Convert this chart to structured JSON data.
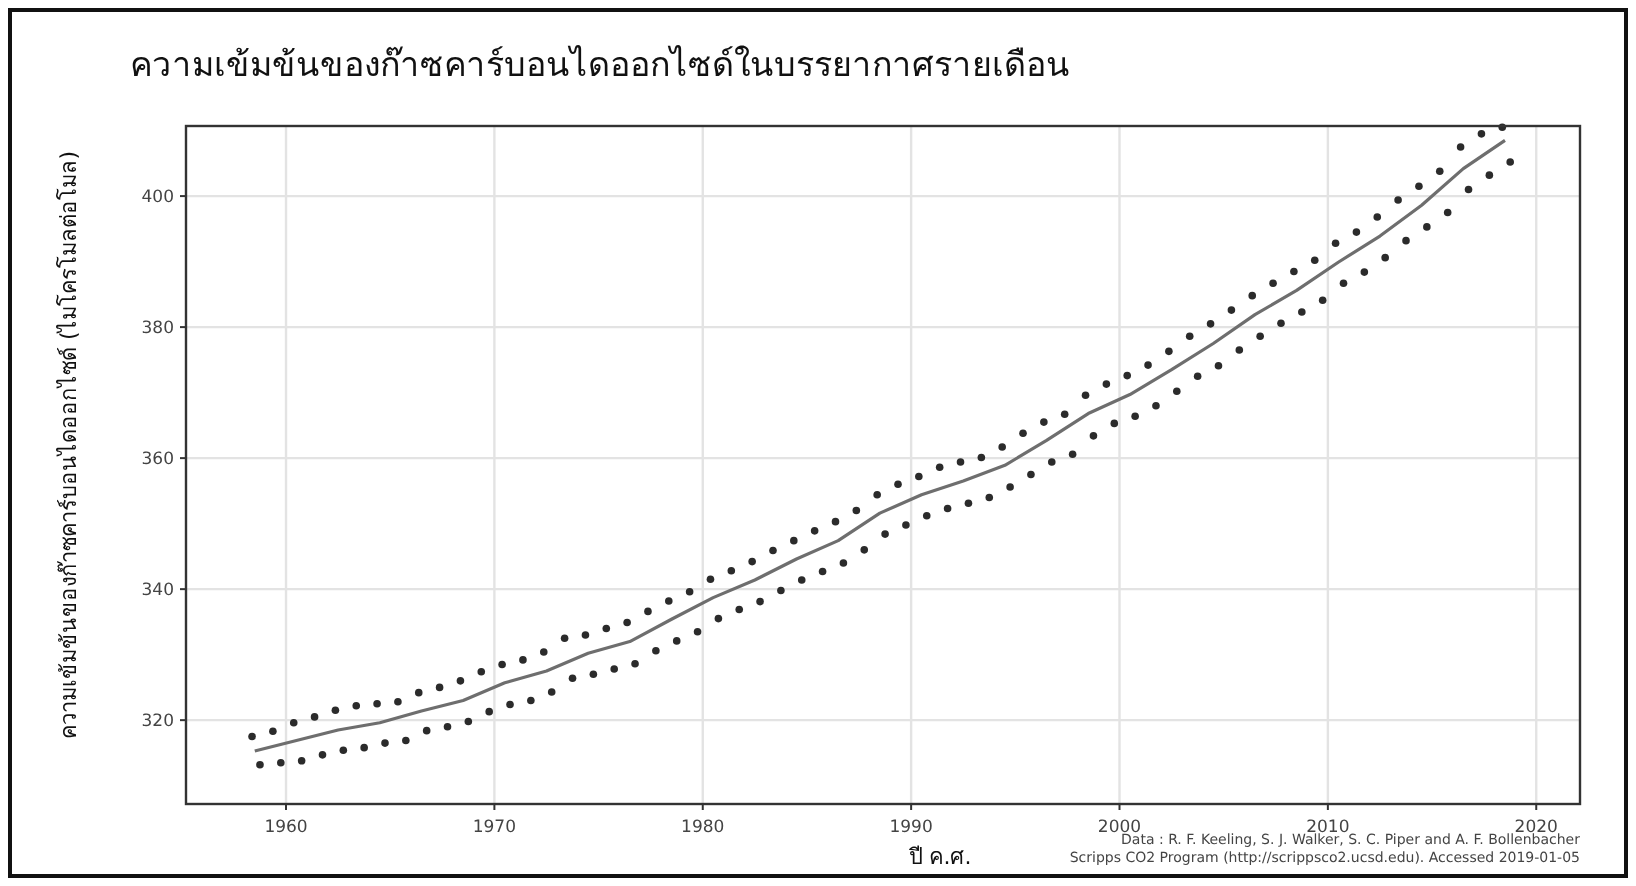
{
  "chart_data": {
    "type": "scatter",
    "title": "ความเข้มข้นของก๊าซคาร์บอนไดออกไซด์ในบรรยากาศรายเดือน",
    "xlabel": "ปี ค.ศ.",
    "ylabel": "ความเข้มข้นของก๊าซคาร์บอนไดออกไซด์  (ไมโครโมลต่อโมล)",
    "annotations": [
      "Data : R. F. Keeling, S. J. Walker, S. C. Piper and A. F. Bollenbacher",
      "Scripps CO2 Program (http://scrippsco2.ucsd.edu). Accessed  2019-01-05"
    ],
    "xlim": [
      1955.2,
      2022.1
    ],
    "ylim": [
      307.2,
      410.7
    ],
    "xticks": [
      1960,
      1970,
      1980,
      1990,
      2000,
      2010,
      2020
    ],
    "yticks": [
      320,
      340,
      360,
      380,
      400
    ],
    "grid": true,
    "series": [
      {
        "marker": "circle",
        "color": "#2b2b2b",
        "x": [
          1958.37,
          1958.75,
          1959.37,
          1959.75,
          1960.37,
          1960.75,
          1961.37,
          1961.75,
          1962.37,
          1962.75,
          1963.37,
          1963.75,
          1964.37,
          1964.75,
          1965.37,
          1965.75,
          1966.37,
          1966.75,
          1967.37,
          1967.75,
          1968.37,
          1968.75,
          1969.37,
          1969.75,
          1970.37,
          1970.75,
          1971.37,
          1971.75,
          1972.37,
          1972.75,
          1973.37,
          1973.75,
          1974.37,
          1974.75,
          1975.37,
          1975.75,
          1976.37,
          1976.75,
          1977.37,
          1977.75,
          1978.37,
          1978.75,
          1979.37,
          1979.75,
          1980.37,
          1980.75,
          1981.37,
          1981.75,
          1982.37,
          1982.75,
          1983.37,
          1983.75,
          1984.37,
          1984.75,
          1985.37,
          1985.75,
          1986.37,
          1986.75,
          1987.37,
          1987.75,
          1988.37,
          1988.75,
          1989.37,
          1989.75,
          1990.37,
          1990.75,
          1991.37,
          1991.75,
          1992.37,
          1992.75,
          1993.37,
          1993.75,
          1994.37,
          1994.75,
          1995.37,
          1995.75,
          1996.37,
          1996.75,
          1997.37,
          1997.75,
          1998.37,
          1998.75,
          1999.37,
          1999.75,
          2000.37,
          2000.75,
          2001.37,
          2001.75,
          2002.37,
          2002.75,
          2003.37,
          2003.75,
          2004.37,
          2004.75,
          2005.37,
          2005.75,
          2006.37,
          2006.75,
          2007.37,
          2007.75,
          2008.37,
          2008.75,
          2009.37,
          2009.75,
          2010.37,
          2010.75,
          2011.37,
          2011.75,
          2012.37,
          2012.75,
          2013.37,
          2013.75,
          2014.37,
          2014.75,
          2015.37,
          2015.75,
          2016.37,
          2016.75,
          2017.37,
          2017.75,
          2018.37,
          2018.75
        ],
        "values": [
          317.5,
          313.2,
          318.3,
          313.5,
          319.6,
          313.8,
          320.5,
          314.7,
          321.5,
          315.4,
          322.2,
          315.8,
          322.5,
          316.5,
          322.8,
          316.9,
          324.2,
          318.4,
          325.0,
          319.0,
          326.0,
          319.8,
          327.4,
          321.3,
          328.5,
          322.4,
          329.2,
          323.0,
          330.4,
          324.3,
          332.5,
          326.4,
          333.0,
          327.0,
          334.0,
          327.8,
          334.9,
          328.6,
          336.6,
          330.6,
          338.2,
          332.1,
          339.6,
          333.5,
          341.5,
          335.5,
          342.8,
          336.9,
          344.2,
          338.1,
          345.9,
          339.8,
          347.4,
          341.4,
          348.9,
          342.7,
          350.3,
          344.0,
          352.0,
          346.0,
          354.4,
          348.4,
          356.0,
          349.8,
          357.2,
          351.2,
          358.6,
          352.3,
          359.4,
          353.1,
          360.1,
          354.0,
          361.7,
          355.6,
          363.8,
          357.5,
          365.5,
          359.4,
          366.7,
          360.6,
          369.6,
          363.4,
          371.3,
          365.3,
          372.6,
          366.4,
          374.2,
          368.0,
          376.3,
          370.2,
          378.6,
          372.5,
          380.5,
          374.1,
          382.6,
          376.5,
          384.8,
          378.6,
          386.7,
          380.6,
          388.5,
          382.3,
          390.2,
          384.1,
          392.8,
          386.7,
          394.5,
          388.4,
          396.8,
          390.6,
          399.4,
          393.2,
          401.5,
          395.3,
          403.8,
          397.5,
          407.5,
          401.0,
          409.5,
          403.2,
          410.5,
          405.2
        ]
      },
      {
        "type": "line",
        "color": "#6e6e6e",
        "x": [
          1958.5,
          1960.5,
          1962.5,
          1964.5,
          1966.5,
          1968.5,
          1970.5,
          1972.5,
          1974.5,
          1976.5,
          1978.5,
          1980.5,
          1982.5,
          1984.5,
          1986.5,
          1988.5,
          1990.5,
          1992.5,
          1994.5,
          1996.5,
          1998.5,
          2000.5,
          2002.5,
          2004.5,
          2006.5,
          2008.5,
          2010.5,
          2012.5,
          2014.5,
          2016.5,
          2018.5
        ],
        "values": [
          315.3,
          316.9,
          318.5,
          319.6,
          321.4,
          323.0,
          325.7,
          327.5,
          330.2,
          332.0,
          335.4,
          338.7,
          341.4,
          344.6,
          347.4,
          351.6,
          354.4,
          356.5,
          358.9,
          362.7,
          366.8,
          369.7,
          373.5,
          377.5,
          381.9,
          385.6,
          389.9,
          393.9,
          398.6,
          404.2,
          408.5
        ]
      }
    ]
  }
}
